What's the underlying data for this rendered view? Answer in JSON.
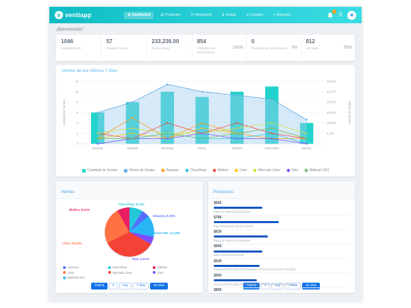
{
  "app": {
    "brand": "ventiapp",
    "accent": "#12bfc9",
    "active_blue": "#1273ea"
  },
  "header": {
    "notification_badge": "1",
    "nav": [
      {
        "label": "Dashboard",
        "icon": "▦",
        "icon_name": "dashboard-icon",
        "active": true
      },
      {
        "label": "Productos",
        "icon": "▤",
        "icon_name": "products-icon",
        "active": false
      },
      {
        "label": "Mensajería",
        "icon": "✉",
        "icon_name": "messages-icon",
        "active": false
      },
      {
        "label": "Ventas",
        "icon": "$",
        "icon_name": "sales-icon",
        "active": false
      },
      {
        "label": "Canales",
        "icon": "⇄",
        "icon_name": "channels-icon",
        "active": false
      },
      {
        "label": "Reportes",
        "icon": "≡",
        "icon_name": "reports-icon",
        "active": false
      }
    ]
  },
  "welcome": "¡Bienvenido!",
  "stats": [
    {
      "value": "1046",
      "label": "Cantidad SKUS",
      "percent": ""
    },
    {
      "value": "57",
      "label": "Cantidad Ventas",
      "percent": ""
    },
    {
      "value": "233,236.00",
      "label": "Monto Ventas",
      "percent": ""
    },
    {
      "value": "854",
      "label": "Productos con publicaciones",
      "percent": "100%"
    },
    {
      "value": "0",
      "label": "Productos sin publicaciones",
      "percent": "0%"
    },
    {
      "value": "812",
      "label": "Con stock",
      "percent": "95%"
    }
  ],
  "chart_data": [
    {
      "type": "bar",
      "title": "Ventas de los últimos 7 días",
      "categories": [
        "viernes",
        "sábado",
        "domingo",
        "lunes",
        "martes",
        "miércoles",
        "jueves"
      ],
      "series": [
        {
          "name": "Cantidad de Ventas",
          "type": "bar",
          "axis": "left",
          "color": "#23d3cd",
          "values": [
            6,
            8,
            10,
            9,
            10,
            11,
            4
          ]
        },
        {
          "name": "Monto de Ventas",
          "type": "area",
          "axis": "right",
          "color": "#9fcdf0",
          "values": [
            25002,
            33336,
            47500,
            41670,
            38800,
            35600,
            19200
          ]
        },
        {
          "name": "Amazon",
          "type": "line",
          "axis": "left",
          "color": "#ff9800",
          "values": [
            1,
            5,
            1,
            4,
            2,
            1,
            1
          ]
        },
        {
          "name": "ClaroShop",
          "type": "line",
          "axis": "left",
          "color": "#26c6da",
          "values": [
            0,
            1,
            2,
            1,
            1,
            2,
            0
          ]
        },
        {
          "name": "Elektra",
          "type": "line",
          "axis": "left",
          "color": "#f44336",
          "values": [
            2,
            1,
            4,
            2,
            4,
            2,
            1
          ]
        },
        {
          "name": "Linio",
          "type": "line",
          "axis": "left",
          "color": "#ffc107",
          "values": [
            1,
            2,
            1,
            3,
            2,
            3,
            1
          ]
        },
        {
          "name": "Mercado Libre",
          "type": "line",
          "axis": "left",
          "color": "#cddc39",
          "values": [
            2,
            3,
            2,
            2,
            3,
            4,
            2
          ]
        },
        {
          "name": "Vtex",
          "type": "line",
          "axis": "left",
          "color": "#7c4dff",
          "values": [
            0,
            1,
            1,
            2,
            1,
            1,
            0
          ]
        },
        {
          "name": "Walmart EDI",
          "type": "line",
          "axis": "left",
          "color": "#66bb6a",
          "values": [
            1,
            1,
            2,
            1,
            2,
            3,
            1
          ]
        }
      ],
      "left_axis": {
        "label": "Cantidad de Ventas",
        "ticks": [
          0,
          2,
          4,
          6,
          8,
          10,
          12
        ],
        "max": 12
      },
      "right_axis": {
        "label": "Monto de Ventas",
        "ticks": [
          "8,334",
          "16,668",
          "25,002",
          "33,336",
          "41,670",
          "50,004"
        ],
        "tick_values": [
          8334,
          16668,
          25002,
          33336,
          41670,
          50004
        ],
        "max": 50004
      },
      "grid": true,
      "legend_position": "bottom"
    },
    {
      "type": "pie",
      "title": "Ventas",
      "slices": [
        {
          "label": "ClaroShop",
          "value": 8.72,
          "color": "#26c6da",
          "labeled": true
        },
        {
          "label": "Amazon",
          "value": 5.23,
          "color": "#536dfe",
          "labeled": true
        },
        {
          "label": "Walmart EDI",
          "value": 14.19,
          "color": "#29b6f6",
          "labeled": true
        },
        {
          "label": "Vtex",
          "value": 5.07,
          "color": "#7c4dff",
          "labeled": true
        },
        {
          "label": "Mercado Libre",
          "value": 34.46,
          "color": "#f44336",
          "labeled": false
        },
        {
          "label": "Linio",
          "value": 24.22,
          "color": "#ff7043",
          "labeled": true
        },
        {
          "label": "Elektra",
          "value": 8.11,
          "color": "#e91e63",
          "labeled": true
        }
      ],
      "legend_order": [
        "Amazon",
        "ClaroShop",
        "Elektra",
        "Linio",
        "Mercado Libre",
        "Vtex",
        "Walmart EDI"
      ],
      "legend_position": "bottom"
    }
  ],
  "sales_panel": {
    "title": "Ventas",
    "buttons": [
      {
        "label": "Total $",
        "active": true
      },
      {
        "label": "#",
        "active": false
      },
      {
        "label": "Hoy",
        "active": false
      },
      {
        "label": "7 días",
        "active": false
      },
      {
        "label": "30 días",
        "active": true
      }
    ]
  },
  "products_panel": {
    "title": "Productos",
    "items": [
      {
        "value": "$555",
        "name": "Peluche Pokemón Charizard",
        "bar_pct": 36
      },
      {
        "value": "$786",
        "name": "Bata americana Vanos Selecté",
        "bar_pct": 48
      },
      {
        "value": "$630",
        "name": "Peluche Pokemón Charizard",
        "bar_pct": 40
      },
      {
        "value": "$565",
        "name": "Bata americana Selecté",
        "bar_pct": 36
      },
      {
        "value": "$530",
        "name": "Docena De Brochas Para Makeup 32 Piezas Red 100% Original",
        "bar_pct": 34
      },
      {
        "value": "$500",
        "name": "Docena De Brochas Para Makeup 32 Piezas Red 100% Original",
        "bar_pct": 32
      },
      {
        "value": "$800",
        "name": "Docena De Brochas Para Makeup 32 Piezas Red 100% Original",
        "bar_pct": 50
      },
      {
        "value": "$3K",
        "name": "Samsung Galaxy Buds+ Plus Inalámbricos 2019 Rojo Rojos",
        "bar_pct": 96
      }
    ],
    "buttons": [
      {
        "label": "Total $",
        "active": true
      },
      {
        "label": "#",
        "active": false
      },
      {
        "label": "Hoy",
        "active": false
      },
      {
        "label": "7 días",
        "active": false
      },
      {
        "label": "30 días",
        "active": true
      }
    ]
  }
}
